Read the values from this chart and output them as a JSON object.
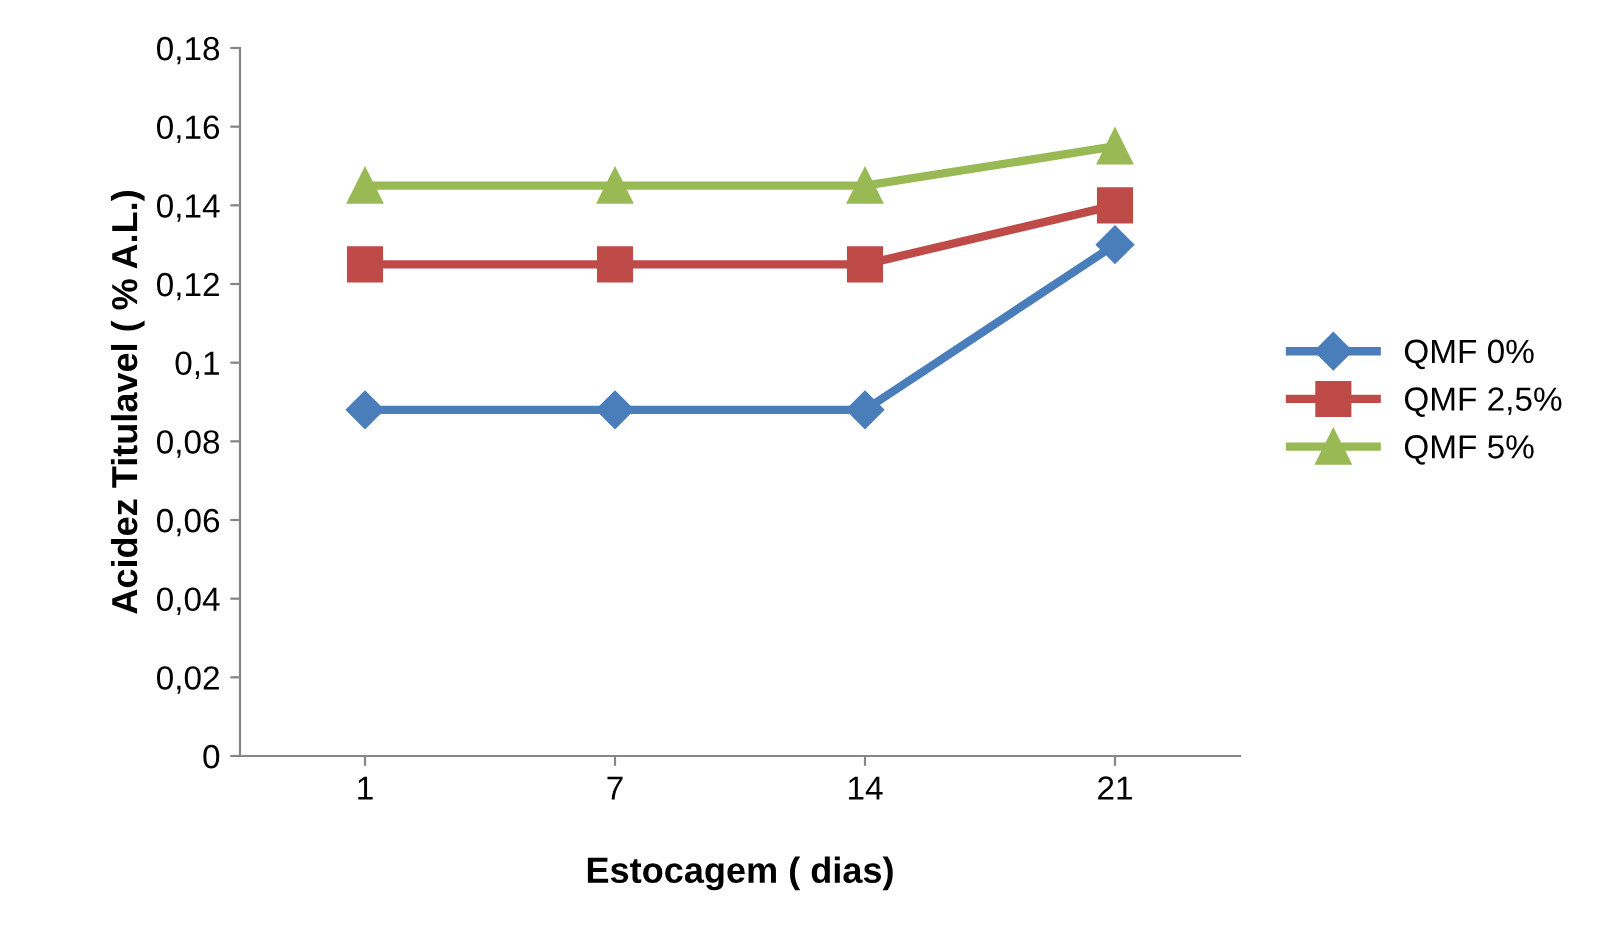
{
  "chart_data": {
    "type": "line",
    "xlabel": "Estocagem ( dias)",
    "ylabel": "Acidez Titulavel ( % A.L.)",
    "categories": [
      "1",
      "7",
      "14",
      "21"
    ],
    "series": [
      {
        "name": "QMF 0%",
        "color": "#4a7ebb",
        "marker": "diamond",
        "values": [
          0.088,
          0.088,
          0.088,
          0.13
        ]
      },
      {
        "name": "QMF 2,5%",
        "color": "#be4b48",
        "marker": "square",
        "values": [
          0.125,
          0.125,
          0.125,
          0.14
        ]
      },
      {
        "name": "QMF 5%",
        "color": "#98b954",
        "marker": "triangle",
        "values": [
          0.145,
          0.145,
          0.145,
          0.155
        ]
      }
    ],
    "ylim": [
      0,
      0.18
    ],
    "yticks": [
      {
        "value": 0,
        "label": "0"
      },
      {
        "value": 0.02,
        "label": "0,02"
      },
      {
        "value": 0.04,
        "label": "0,04"
      },
      {
        "value": 0.06,
        "label": "0,06"
      },
      {
        "value": 0.08,
        "label": "0,08"
      },
      {
        "value": 0.1,
        "label": "0,1"
      },
      {
        "value": 0.12,
        "label": "0,12"
      },
      {
        "value": 0.14,
        "label": "0,14"
      },
      {
        "value": 0.16,
        "label": "0,16"
      },
      {
        "value": 0.18,
        "label": "0,18"
      }
    ],
    "grid": false,
    "legend": "right",
    "line_style": "solid"
  }
}
